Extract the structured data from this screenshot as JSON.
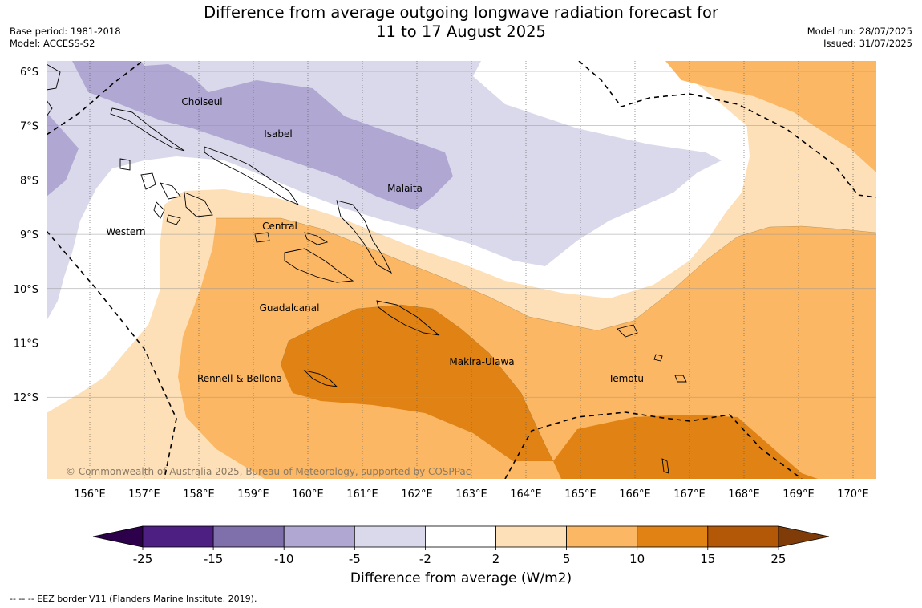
{
  "title": {
    "line1": "Difference from average outgoing longwave radiation forecast for",
    "line2": "11 to 17 August 2025"
  },
  "meta_left": {
    "base_period": "Base period: 1981-2018",
    "model": "Model: ACCESS-S2"
  },
  "meta_right": {
    "model_run": "Model run: 28/07/2025",
    "issued": "Issued: 31/07/2025"
  },
  "map": {
    "lon_ticks": [
      "156°E",
      "157°E",
      "158°E",
      "159°E",
      "160°E",
      "161°E",
      "162°E",
      "163°E",
      "164°E",
      "165°E",
      "166°E",
      "167°E",
      "168°E",
      "169°E",
      "170°E"
    ],
    "lat_ticks": [
      "6°S",
      "7°S",
      "8°S",
      "9°S",
      "10°S",
      "11°S",
      "12°S"
    ],
    "provinces": [
      "Choiseul",
      "Isabel",
      "Malaita",
      "Western",
      "Central",
      "Guadalcanal",
      "Makira-Ulawa",
      "Rennell & Bellona",
      "Temotu"
    ],
    "copyright": "© Commonwealth of Australia 2025, Bureau of Meteorology, supported by COSPPac"
  },
  "colorbar": {
    "label": "Difference from average (W/m2)",
    "ticks": [
      "-25",
      "-15",
      "-10",
      "-5",
      "-2",
      "2",
      "5",
      "10",
      "15",
      "25"
    ],
    "colors": [
      "#4e1f82",
      "#7f6fab",
      "#b0a8d2",
      "#d9d9eb",
      "#ffffff",
      "#fde0b7",
      "#fbb763",
      "#e08314",
      "#b35806"
    ],
    "under_color": "#2d004b",
    "over_color": "#7f3b08"
  },
  "footnote": "--  --  -- EEZ border V11 (Flanders Marine Institute, 2019)."
}
